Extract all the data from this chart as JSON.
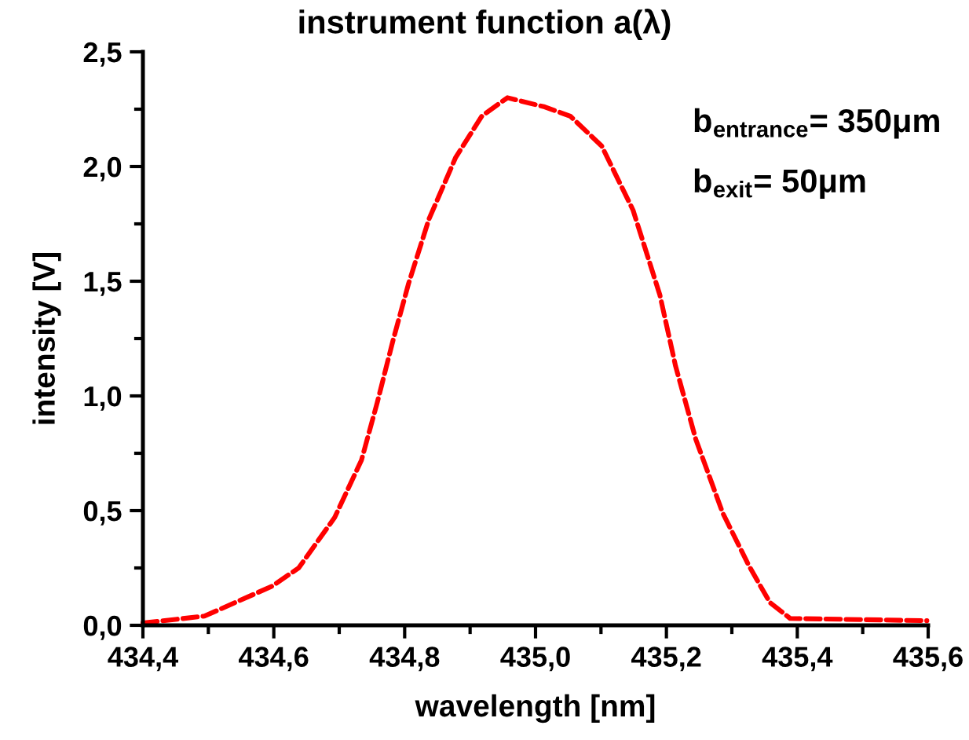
{
  "chart_data": {
    "type": "line",
    "title": "instrument function a(λ)",
    "xlabel": "wavelength [nm]",
    "ylabel": "intensity [V]",
    "annotations": [
      "b$_{entrance}$= 350μm",
      "b$_{exit}$= 50μm"
    ],
    "x": [
      434.4,
      434.494,
      434.597,
      434.638,
      434.693,
      434.734,
      434.758,
      434.782,
      434.806,
      434.837,
      434.878,
      434.918,
      434.957,
      435.014,
      435.053,
      435.101,
      435.149,
      435.19,
      435.214,
      435.245,
      435.286,
      435.326,
      435.358,
      435.389,
      435.598
    ],
    "series": [
      {
        "color": "#ff0000",
        "values": [
          0.01,
          0.04,
          0.17,
          0.25,
          0.47,
          0.72,
          0.97,
          1.24,
          1.49,
          1.77,
          2.04,
          2.22,
          2.3,
          2.26,
          2.22,
          2.09,
          1.81,
          1.44,
          1.13,
          0.81,
          0.49,
          0.26,
          0.1,
          0.03,
          0.02
        ]
      }
    ],
    "line_style": "dashed",
    "marker": "none",
    "grid": false,
    "legend": false,
    "xlim": [
      434.4,
      435.6
    ],
    "ylim": [
      0,
      2.5
    ],
    "xticks": [
      {
        "value": 434.4,
        "label": "434,4"
      },
      {
        "value": 434.6,
        "label": "434,6"
      },
      {
        "value": 434.8,
        "label": "434,8"
      },
      {
        "value": 435.0,
        "label": "435,0"
      },
      {
        "value": 435.2,
        "label": "435,2"
      },
      {
        "value": 435.4,
        "label": "435,4"
      },
      {
        "value": 435.6,
        "label": "435,6"
      }
    ],
    "yticks": [
      {
        "value": 0,
        "label": "0,0"
      },
      {
        "value": 0.5,
        "label": "0,5"
      },
      {
        "value": 1.0,
        "label": "1,0"
      },
      {
        "value": 1.5,
        "label": "1,5"
      },
      {
        "value": 2.0,
        "label": "2,0"
      },
      {
        "value": 2.5,
        "label": "2,5"
      }
    ]
  }
}
